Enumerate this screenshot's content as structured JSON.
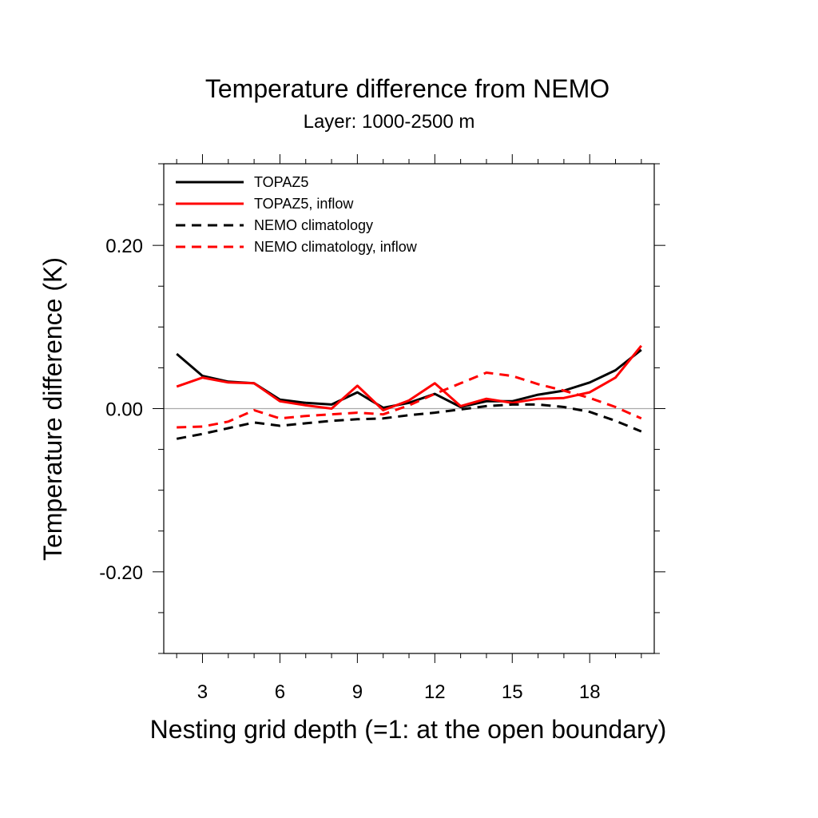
{
  "chart_data": {
    "type": "line",
    "title": "Temperature difference from NEMO",
    "subtitle": "Layer: 1000-2500 m",
    "xlabel": "Nesting grid depth (=1: at the open boundary)",
    "ylabel": "Temperature difference (K)",
    "xlim": [
      1.5,
      20.5
    ],
    "ylim": [
      -0.3,
      0.3
    ],
    "xticks": [
      3,
      6,
      9,
      12,
      15,
      18
    ],
    "xtick_labels": [
      "3",
      "6",
      "9",
      "12",
      "15",
      "18"
    ],
    "yticks": [
      -0.2,
      0.0,
      0.2
    ],
    "ytick_labels": [
      "-0.20",
      "0.00",
      "0.20"
    ],
    "zero_line": true,
    "grid": false,
    "legend_position": "top-left",
    "x": [
      2,
      3,
      4,
      5,
      6,
      7,
      8,
      9,
      10,
      11,
      12,
      13,
      14,
      15,
      16,
      17,
      18,
      19,
      20
    ],
    "series": [
      {
        "name": "TOPAZ5",
        "color": "#000000",
        "dash": "solid",
        "values": [
          0.067,
          0.04,
          0.033,
          0.031,
          0.011,
          0.007,
          0.005,
          0.02,
          0.001,
          0.007,
          0.018,
          0.002,
          0.009,
          0.009,
          0.017,
          0.022,
          0.032,
          0.047,
          0.072
        ]
      },
      {
        "name": "TOPAZ5, inflow",
        "color": "#ff0000",
        "dash": "solid",
        "values": [
          0.027,
          0.038,
          0.032,
          0.031,
          0.009,
          0.004,
          0.0,
          0.028,
          -0.002,
          0.01,
          0.031,
          0.003,
          0.012,
          0.007,
          0.012,
          0.013,
          0.02,
          0.038,
          0.077
        ]
      },
      {
        "name": "NEMO climatology",
        "color": "#000000",
        "dash": "dashed",
        "values": [
          -0.037,
          -0.031,
          -0.024,
          -0.017,
          -0.021,
          -0.018,
          -0.015,
          -0.013,
          -0.012,
          -0.008,
          -0.005,
          -0.001,
          0.003,
          0.005,
          0.005,
          0.002,
          -0.004,
          -0.015,
          -0.028
        ]
      },
      {
        "name": "NEMO climatology, inflow",
        "color": "#ff0000",
        "dash": "dashed",
        "values": [
          -0.023,
          -0.022,
          -0.016,
          -0.002,
          -0.012,
          -0.009,
          -0.007,
          -0.005,
          -0.007,
          0.004,
          0.018,
          0.031,
          0.044,
          0.04,
          0.03,
          0.022,
          0.013,
          0.002,
          -0.012
        ]
      }
    ]
  }
}
